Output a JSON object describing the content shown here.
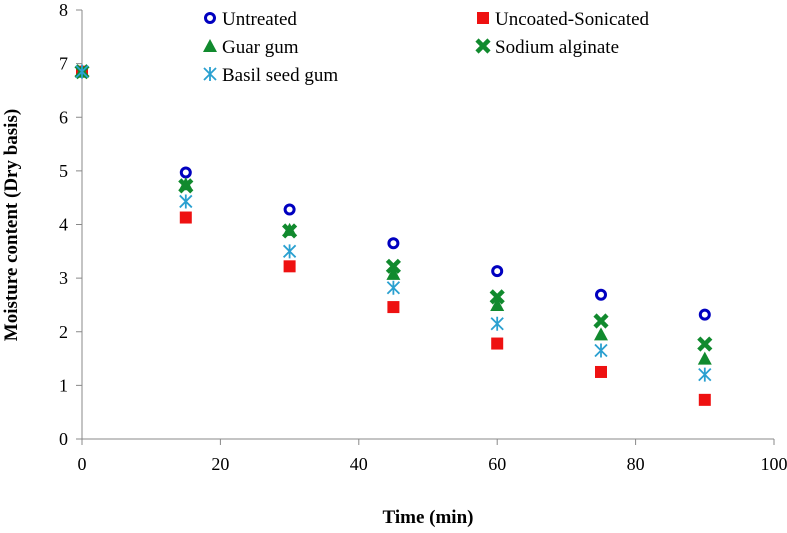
{
  "chart_data": {
    "type": "scatter",
    "title": "",
    "xlabel": "Time (min)",
    "ylabel": "Moisture content (Dry basis)",
    "xlim": [
      0,
      100
    ],
    "ylim": [
      0,
      8
    ],
    "xticks": [
      0,
      20,
      40,
      60,
      80,
      100
    ],
    "yticks": [
      0,
      1,
      2,
      3,
      4,
      5,
      6,
      7,
      8
    ],
    "grid": false,
    "legend_position": "top",
    "x": [
      0,
      15,
      30,
      45,
      60,
      75,
      90
    ],
    "series": [
      {
        "name": "Untreated",
        "marker": "ring",
        "color": "#0000c0",
        "values": [
          6.85,
          4.97,
          4.28,
          3.65,
          3.13,
          2.69,
          2.32
        ]
      },
      {
        "name": "Uncoated-Sonicated",
        "marker": "square",
        "color": "#ee1111",
        "values": [
          6.85,
          4.13,
          3.22,
          2.46,
          1.78,
          1.25,
          0.73
        ]
      },
      {
        "name": "Guar gum",
        "marker": "triangle",
        "color": "#118a2e",
        "values": [
          6.85,
          4.75,
          3.9,
          3.08,
          2.5,
          1.95,
          1.5
        ]
      },
      {
        "name": "Sodium alginate",
        "marker": "x",
        "color": "#118a2e",
        "values": [
          6.85,
          4.72,
          3.88,
          3.22,
          2.65,
          2.2,
          1.77
        ]
      },
      {
        "name": "Basil seed gum",
        "marker": "asterisk",
        "color": "#2aa0d0",
        "values": [
          6.85,
          4.43,
          3.5,
          2.82,
          2.15,
          1.65,
          1.2
        ]
      }
    ]
  }
}
